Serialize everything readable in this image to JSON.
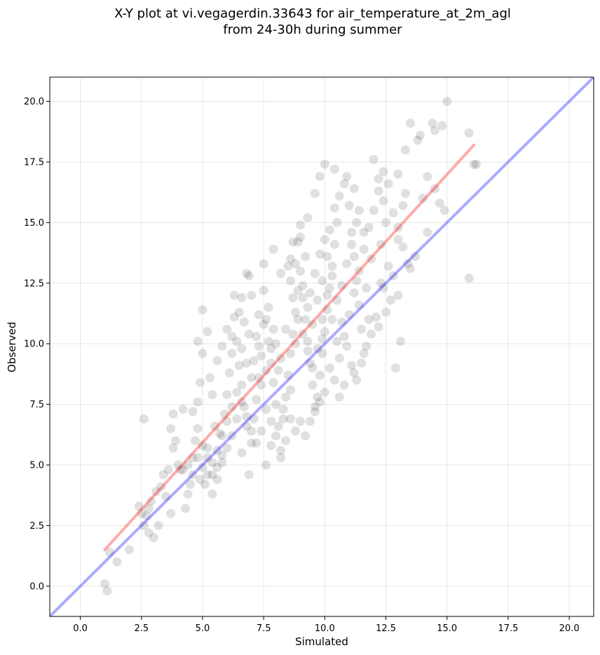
{
  "chart_data": {
    "type": "scatter",
    "title_line1": "X-Y plot at vi.vegagerdin.33643 for air_temperature_at_2m_agl",
    "title_line2": "from 24-30h during summer",
    "xlabel": "Simulated",
    "ylabel": "Observed",
    "xlim": [
      -1.25,
      21.0
    ],
    "ylim": [
      -1.25,
      21.0
    ],
    "xticks": [
      "0.0",
      "2.5",
      "5.0",
      "7.5",
      "10.0",
      "12.5",
      "15.0",
      "17.5",
      "20.0"
    ],
    "yticks": [
      "0.0",
      "2.5",
      "5.0",
      "7.5",
      "10.0",
      "12.5",
      "15.0",
      "17.5",
      "20.0"
    ],
    "grid": true,
    "point_color": "#000000",
    "point_alpha": 0.12,
    "identity_line": {
      "color": "#0000ff",
      "x": [
        -1.25,
        21.0
      ],
      "y": [
        -1.25,
        21.0
      ]
    },
    "fit_line": {
      "color": "#ff0000",
      "x": [
        1.0,
        16.1
      ],
      "y": [
        1.5,
        18.2
      ]
    },
    "series": [
      {
        "points": [
          [
            1.0,
            0.1
          ],
          [
            1.1,
            -0.2
          ],
          [
            1.5,
            1.0
          ],
          [
            1.2,
            1.4
          ],
          [
            2.0,
            1.5
          ],
          [
            2.6,
            6.9
          ],
          [
            2.4,
            3.3
          ],
          [
            2.5,
            3.0
          ],
          [
            2.7,
            2.9
          ],
          [
            2.6,
            2.5
          ],
          [
            2.8,
            2.2
          ],
          [
            3.0,
            2.0
          ],
          [
            2.9,
            3.5
          ],
          [
            3.2,
            2.5
          ],
          [
            3.3,
            4.1
          ],
          [
            3.5,
            3.7
          ],
          [
            3.7,
            3.0
          ],
          [
            3.6,
            4.8
          ],
          [
            3.8,
            5.7
          ],
          [
            3.7,
            6.5
          ],
          [
            3.8,
            7.1
          ],
          [
            4.0,
            5.0
          ],
          [
            4.2,
            4.8
          ],
          [
            4.4,
            3.8
          ],
          [
            4.3,
            3.2
          ],
          [
            4.5,
            4.2
          ],
          [
            4.6,
            5.3
          ],
          [
            4.7,
            6.0
          ],
          [
            4.8,
            6.5
          ],
          [
            4.6,
            7.2
          ],
          [
            4.8,
            7.6
          ],
          [
            4.8,
            10.1
          ],
          [
            5.0,
            11.4
          ],
          [
            5.2,
            10.5
          ],
          [
            5.0,
            9.6
          ],
          [
            5.3,
            8.6
          ],
          [
            5.4,
            7.9
          ],
          [
            5.5,
            6.6
          ],
          [
            5.2,
            5.7
          ],
          [
            5.0,
            4.9
          ],
          [
            5.1,
            4.2
          ],
          [
            5.4,
            3.8
          ],
          [
            5.6,
            4.4
          ],
          [
            5.8,
            5.4
          ],
          [
            5.7,
            6.3
          ],
          [
            5.9,
            7.1
          ],
          [
            6.0,
            7.9
          ],
          [
            6.1,
            8.8
          ],
          [
            6.2,
            9.6
          ],
          [
            6.0,
            10.6
          ],
          [
            6.3,
            11.1
          ],
          [
            6.4,
            10.1
          ],
          [
            6.5,
            9.1
          ],
          [
            6.6,
            8.3
          ],
          [
            6.7,
            7.4
          ],
          [
            6.8,
            6.6
          ],
          [
            6.6,
            5.5
          ],
          [
            6.9,
            4.6
          ],
          [
            7.0,
            5.9
          ],
          [
            7.1,
            6.9
          ],
          [
            7.2,
            7.7
          ],
          [
            7.3,
            8.6
          ],
          [
            7.4,
            9.5
          ],
          [
            7.2,
            10.3
          ],
          [
            7.3,
            11.2
          ],
          [
            7.0,
            12.0
          ],
          [
            6.9,
            12.8
          ],
          [
            7.5,
            12.2
          ],
          [
            7.6,
            11.0
          ],
          [
            7.7,
            10.1
          ],
          [
            7.8,
            9.2
          ],
          [
            7.9,
            8.4
          ],
          [
            8.0,
            7.5
          ],
          [
            8.1,
            6.6
          ],
          [
            7.8,
            5.8
          ],
          [
            7.6,
            5.0
          ],
          [
            8.2,
            5.3
          ],
          [
            8.3,
            6.9
          ],
          [
            8.4,
            7.8
          ],
          [
            8.5,
            8.7
          ],
          [
            8.6,
            9.6
          ],
          [
            8.7,
            10.4
          ],
          [
            8.8,
            11.3
          ],
          [
            8.9,
            12.2
          ],
          [
            8.6,
            13.5
          ],
          [
            8.7,
            14.2
          ],
          [
            9.0,
            13.0
          ],
          [
            9.1,
            11.9
          ],
          [
            9.2,
            11.0
          ],
          [
            9.3,
            10.1
          ],
          [
            9.4,
            9.2
          ],
          [
            9.5,
            8.3
          ],
          [
            9.6,
            7.4
          ],
          [
            9.2,
            6.2
          ],
          [
            9.0,
            6.8
          ],
          [
            9.7,
            7.8
          ],
          [
            9.8,
            8.7
          ],
          [
            9.9,
            9.6
          ],
          [
            10.0,
            10.5
          ],
          [
            10.1,
            11.4
          ],
          [
            10.2,
            12.3
          ],
          [
            10.3,
            13.2
          ],
          [
            10.4,
            14.1
          ],
          [
            10.5,
            15.0
          ],
          [
            9.6,
            16.2
          ],
          [
            9.8,
            16.9
          ],
          [
            10.0,
            17.4
          ],
          [
            10.4,
            17.2
          ],
          [
            10.8,
            16.6
          ],
          [
            11.0,
            15.7
          ],
          [
            11.1,
            14.6
          ],
          [
            11.2,
            13.6
          ],
          [
            11.3,
            12.6
          ],
          [
            11.4,
            11.6
          ],
          [
            11.5,
            10.6
          ],
          [
            11.6,
            9.6
          ],
          [
            11.2,
            8.8
          ],
          [
            10.8,
            8.3
          ],
          [
            10.6,
            7.8
          ],
          [
            12.0,
            17.6
          ],
          [
            12.2,
            16.8
          ],
          [
            12.4,
            15.9
          ],
          [
            12.5,
            15.0
          ],
          [
            12.3,
            14.1
          ],
          [
            12.6,
            13.2
          ],
          [
            12.4,
            12.3
          ],
          [
            12.5,
            11.3
          ],
          [
            12.2,
            10.7
          ],
          [
            12.8,
            12.8
          ],
          [
            13.0,
            14.3
          ],
          [
            13.2,
            15.7
          ],
          [
            13.3,
            16.2
          ],
          [
            13.0,
            17.0
          ],
          [
            13.3,
            18.0
          ],
          [
            13.5,
            19.1
          ],
          [
            13.8,
            18.4
          ],
          [
            13.9,
            18.6
          ],
          [
            14.4,
            19.1
          ],
          [
            14.5,
            18.8
          ],
          [
            14.8,
            19.0
          ],
          [
            15.0,
            20.0
          ],
          [
            14.0,
            16.0
          ],
          [
            14.2,
            16.9
          ],
          [
            14.5,
            16.4
          ],
          [
            14.7,
            15.8
          ],
          [
            14.9,
            15.5
          ],
          [
            15.9,
            18.7
          ],
          [
            16.1,
            17.4
          ],
          [
            16.2,
            17.4
          ],
          [
            15.9,
            12.7
          ],
          [
            14.2,
            14.6
          ],
          [
            13.7,
            13.6
          ],
          [
            13.5,
            13.1
          ],
          [
            13.0,
            12.0
          ],
          [
            12.9,
            9.0
          ],
          [
            13.1,
            10.1
          ],
          [
            12.3,
            12.5
          ],
          [
            11.8,
            11.0
          ],
          [
            11.7,
            12.3
          ],
          [
            11.9,
            13.5
          ],
          [
            11.6,
            14.6
          ],
          [
            11.4,
            15.5
          ],
          [
            11.2,
            16.4
          ],
          [
            10.9,
            16.9
          ],
          [
            9.3,
            15.2
          ],
          [
            9.0,
            14.9
          ],
          [
            8.9,
            14.2
          ],
          [
            8.5,
            13.2
          ],
          [
            8.2,
            12.9
          ],
          [
            7.9,
            13.9
          ],
          [
            7.5,
            13.3
          ],
          [
            6.6,
            11.9
          ],
          [
            6.8,
            12.9
          ],
          [
            6.2,
            10.3
          ],
          [
            5.8,
            9.9
          ],
          [
            5.6,
            9.3
          ],
          [
            4.9,
            8.4
          ],
          [
            4.2,
            7.3
          ],
          [
            3.9,
            6.0
          ],
          [
            3.4,
            4.6
          ],
          [
            3.1,
            3.9
          ],
          [
            2.8,
            3.2
          ],
          [
            8.0,
            10.0
          ],
          [
            8.2,
            9.4
          ],
          [
            8.4,
            10.6
          ],
          [
            7.8,
            9.8
          ],
          [
            7.6,
            8.9
          ],
          [
            7.4,
            8.3
          ],
          [
            7.0,
            8.6
          ],
          [
            6.8,
            9.2
          ],
          [
            6.6,
            9.8
          ],
          [
            6.4,
            8.0
          ],
          [
            6.2,
            7.4
          ],
          [
            6.0,
            6.8
          ],
          [
            5.8,
            6.2
          ],
          [
            5.6,
            5.6
          ],
          [
            5.4,
            5.1
          ],
          [
            5.2,
            4.6
          ],
          [
            4.9,
            4.4
          ],
          [
            4.6,
            4.6
          ],
          [
            4.4,
            5.0
          ],
          [
            4.1,
            4.8
          ],
          [
            9.5,
            10.8
          ],
          [
            9.7,
            11.8
          ],
          [
            9.9,
            12.6
          ],
          [
            10.1,
            13.6
          ],
          [
            10.3,
            12.8
          ],
          [
            10.5,
            11.8
          ],
          [
            10.7,
            10.9
          ],
          [
            10.9,
            9.9
          ],
          [
            11.1,
            9.1
          ],
          [
            9.9,
            10.2
          ],
          [
            9.3,
            11.5
          ],
          [
            9.1,
            12.4
          ],
          [
            8.8,
            10.0
          ],
          [
            8.6,
            8.1
          ],
          [
            8.3,
            7.3
          ],
          [
            8.1,
            8.9
          ],
          [
            7.9,
            10.6
          ],
          [
            7.7,
            11.5
          ],
          [
            7.5,
            10.8
          ],
          [
            7.3,
            9.9
          ],
          [
            7.1,
            9.3
          ],
          [
            6.9,
            10.4
          ],
          [
            6.7,
            10.9
          ],
          [
            6.5,
            11.3
          ],
          [
            6.3,
            12.0
          ],
          [
            10.2,
            9.0
          ],
          [
            10.4,
            8.5
          ],
          [
            10.6,
            9.4
          ],
          [
            10.8,
            10.3
          ],
          [
            11.0,
            11.2
          ],
          [
            11.2,
            12.1
          ],
          [
            11.4,
            13.0
          ],
          [
            11.6,
            13.9
          ],
          [
            11.8,
            14.8
          ],
          [
            12.0,
            15.5
          ],
          [
            12.2,
            16.3
          ],
          [
            12.4,
            17.1
          ],
          [
            12.6,
            16.6
          ],
          [
            12.8,
            15.4
          ],
          [
            13.0,
            14.8
          ],
          [
            13.2,
            14.0
          ],
          [
            13.4,
            13.3
          ],
          [
            12.7,
            11.8
          ],
          [
            12.1,
            11.1
          ],
          [
            11.9,
            10.4
          ],
          [
            11.7,
            9.9
          ],
          [
            11.5,
            9.2
          ],
          [
            11.3,
            8.5
          ],
          [
            9.4,
            6.8
          ],
          [
            9.6,
            7.2
          ],
          [
            9.8,
            7.6
          ],
          [
            10.0,
            8.0
          ],
          [
            8.8,
            6.4
          ],
          [
            8.6,
            6.9
          ],
          [
            8.4,
            6.0
          ],
          [
            8.2,
            5.6
          ],
          [
            8.0,
            6.2
          ],
          [
            7.8,
            6.8
          ],
          [
            7.6,
            7.3
          ],
          [
            7.4,
            6.4
          ],
          [
            7.2,
            5.9
          ],
          [
            7.0,
            6.4
          ],
          [
            6.8,
            7.0
          ],
          [
            6.6,
            7.6
          ],
          [
            6.4,
            6.9
          ],
          [
            6.2,
            6.2
          ],
          [
            6.0,
            5.7
          ],
          [
            5.8,
            5.1
          ],
          [
            5.6,
            4.9
          ],
          [
            5.4,
            4.6
          ],
          [
            5.2,
            5.3
          ],
          [
            5.0,
            5.8
          ],
          [
            4.8,
            5.3
          ],
          [
            8.7,
            11.9
          ],
          [
            8.9,
            11.0
          ],
          [
            9.1,
            10.4
          ],
          [
            9.3,
            9.7
          ],
          [
            9.5,
            9.0
          ],
          [
            9.7,
            9.8
          ],
          [
            9.9,
            11.0
          ],
          [
            10.1,
            12.0
          ],
          [
            10.3,
            11.0
          ],
          [
            10.5,
            10.1
          ],
          [
            10.7,
            12.4
          ],
          [
            10.9,
            13.3
          ],
          [
            11.1,
            14.1
          ],
          [
            11.3,
            15.0
          ],
          [
            10.6,
            16.1
          ],
          [
            10.4,
            15.6
          ],
          [
            10.2,
            14.7
          ],
          [
            10.0,
            14.3
          ],
          [
            9.8,
            13.7
          ],
          [
            9.6,
            12.9
          ],
          [
            9.4,
            12.1
          ],
          [
            9.2,
            13.6
          ],
          [
            9.0,
            14.4
          ],
          [
            8.8,
            13.3
          ],
          [
            8.6,
            12.6
          ]
        ]
      }
    ]
  }
}
